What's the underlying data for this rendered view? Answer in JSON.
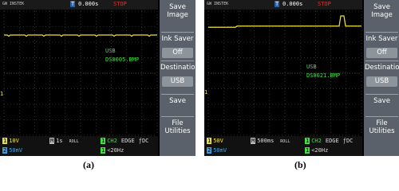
{
  "panels": [
    {
      "header": {
        "brand": "GW INSTEK",
        "trigger": "T",
        "time": "0.000s",
        "status": "STOP"
      },
      "menu": [
        {
          "label": "Save Image"
        },
        {
          "label": "Ink Saver",
          "value": "Off"
        },
        {
          "label": "Destination",
          "value": "USB"
        },
        {
          "label": "Save"
        },
        {
          "label": "File Utilities"
        }
      ],
      "overlay": {
        "device": "USB",
        "file": "DS0005.BMP",
        "marker": "1"
      },
      "footer": {
        "ch1_badge": "1",
        "ch1_scale": "10V",
        "ch2_badge": "2",
        "ch2_scale": "50mV",
        "time_badge": "M",
        "timebase": "1s",
        "mode": "ROLL",
        "source_badge": "1",
        "source": "CH2",
        "edge": "EDGE",
        "coupling": "ƒDC",
        "freq_badge": "1",
        "freq": "<20Hz"
      },
      "caption": "(a)"
    },
    {
      "header": {
        "brand": "GW INSTEK",
        "trigger": "T",
        "time": "0.000s",
        "status": "STOP"
      },
      "menu": [
        {
          "label": "Save Image"
        },
        {
          "label": "Ink Saver",
          "value": "Off"
        },
        {
          "label": "Destination",
          "value": "USB"
        },
        {
          "label": "Save"
        },
        {
          "label": "File Utilities"
        }
      ],
      "overlay": {
        "device": "USB",
        "file": "DS0021.BMP",
        "marker": "1"
      },
      "footer": {
        "ch1_badge": "1",
        "ch1_scale": "50V",
        "ch2_badge": "2",
        "ch2_scale": "50mV",
        "time_badge": "M",
        "timebase": "500ms",
        "mode": "ROLL",
        "source_badge": "1",
        "source": "CH2",
        "edge": "EDGE",
        "coupling": "ƒDC",
        "freq_badge": "1",
        "freq": "<20Hz"
      },
      "caption": "(b)"
    }
  ]
}
